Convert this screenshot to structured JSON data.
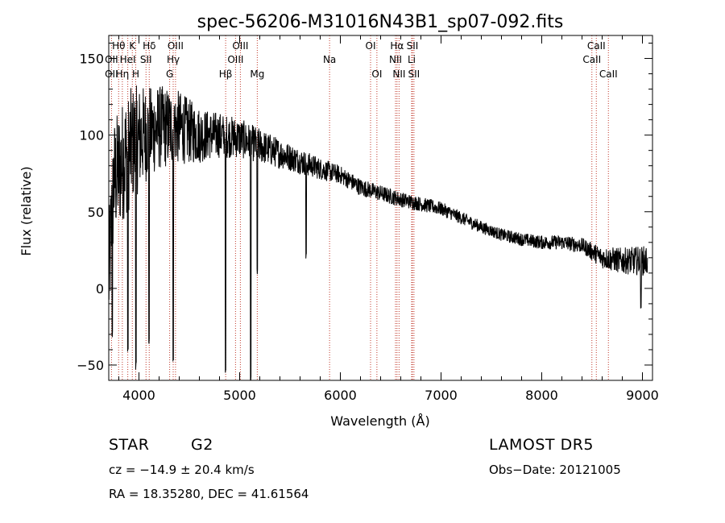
{
  "chart_data": {
    "type": "line",
    "title": "spec-56206-M31016N43B1_sp07-092.fits",
    "xlabel": "Wavelength (Å)",
    "ylabel": "Flux (relative)",
    "xlim": [
      3700,
      9100
    ],
    "ylim": [
      -60,
      165
    ],
    "x_ticks": [
      4000,
      5000,
      6000,
      7000,
      8000,
      9000
    ],
    "y_ticks": [
      -50,
      0,
      50,
      100,
      150
    ],
    "x_tick_labels": [
      "4000",
      "5000",
      "6000",
      "7000",
      "8000",
      "9000"
    ],
    "y_tick_labels": [
      "−50",
      "0",
      "50",
      "100",
      "150"
    ],
    "grid": false,
    "series": [
      {
        "style": "noisy-spectrum",
        "continuum": [
          [
            3700,
            5
          ],
          [
            3750,
            70
          ],
          [
            3850,
            85
          ],
          [
            3950,
            95
          ],
          [
            4050,
            100
          ],
          [
            4200,
            105
          ],
          [
            4400,
            105
          ],
          [
            4600,
            100
          ],
          [
            4800,
            100
          ],
          [
            5000,
            98
          ],
          [
            5200,
            93
          ],
          [
            5400,
            88
          ],
          [
            5600,
            83
          ],
          [
            5800,
            78
          ],
          [
            6000,
            74
          ],
          [
            6200,
            66
          ],
          [
            6400,
            62
          ],
          [
            6600,
            58
          ],
          [
            6800,
            55
          ],
          [
            7000,
            52
          ],
          [
            7200,
            46
          ],
          [
            7400,
            40
          ],
          [
            7600,
            35
          ],
          [
            7800,
            32
          ],
          [
            8000,
            30
          ],
          [
            8200,
            30
          ],
          [
            8400,
            28
          ],
          [
            8600,
            20
          ],
          [
            8800,
            18
          ],
          [
            9000,
            18
          ],
          [
            9050,
            18
          ]
        ],
        "noise_amplitude": [
          [
            3700,
            40
          ],
          [
            3900,
            40
          ],
          [
            4100,
            30
          ],
          [
            4400,
            24
          ],
          [
            4700,
            16
          ],
          [
            5000,
            13
          ],
          [
            5500,
            9
          ],
          [
            6000,
            6
          ],
          [
            6600,
            5
          ],
          [
            7500,
            4
          ],
          [
            8400,
            5
          ],
          [
            8700,
            8
          ],
          [
            9050,
            10
          ]
        ],
        "features": [
          {
            "x": 3735,
            "y": -30
          },
          {
            "x": 3890,
            "y": -40
          },
          {
            "x": 3970,
            "y": -50
          },
          {
            "x": 4101,
            "y": -35
          },
          {
            "x": 4340,
            "y": -45
          },
          {
            "x": 4861,
            "y": -55
          },
          {
            "x": 5110,
            "y": -60
          },
          {
            "x": 5175,
            "y": 10
          },
          {
            "x": 5660,
            "y": 20
          },
          {
            "x": 8985,
            "y": -12
          }
        ]
      }
    ],
    "line_markers": [
      {
        "label": "Hθ",
        "x": 3798,
        "row": 0
      },
      {
        "label": "OII",
        "x": 3727,
        "row": 2
      },
      {
        "label": "OII",
        "x": 3727,
        "row": 1
      },
      {
        "label": "HeI",
        "x": 3889,
        "row": 1
      },
      {
        "label": "Hη",
        "x": 3835,
        "row": 2
      },
      {
        "label": "K",
        "x": 3934,
        "row": 0
      },
      {
        "label": "SII",
        "x": 4070,
        "row": 1
      },
      {
        "label": "H",
        "x": 3968,
        "row": 2
      },
      {
        "label": "Hδ",
        "x": 4102,
        "row": 0
      },
      {
        "label": "OIII",
        "x": 4363,
        "row": 0
      },
      {
        "label": "Hγ",
        "x": 4340,
        "row": 1
      },
      {
        "label": "G",
        "x": 4305,
        "row": 2
      },
      {
        "label": "Hβ",
        "x": 4861,
        "row": 2
      },
      {
        "label": "OIII",
        "x": 5007,
        "row": 0
      },
      {
        "label": "OIII",
        "x": 4959,
        "row": 1
      },
      {
        "label": "Mg",
        "x": 5175,
        "row": 2
      },
      {
        "label": "Na",
        "x": 5893,
        "row": 1
      },
      {
        "label": "OI",
        "x": 6300,
        "row": 0
      },
      {
        "label": "OI",
        "x": 6363,
        "row": 2
      },
      {
        "label": "Hα",
        "x": 6563,
        "row": 0
      },
      {
        "label": "SII",
        "x": 6716,
        "row": 0
      },
      {
        "label": "NII",
        "x": 6548,
        "row": 1
      },
      {
        "label": "Li",
        "x": 6708,
        "row": 1
      },
      {
        "label": "NII",
        "x": 6583,
        "row": 2
      },
      {
        "label": "SII",
        "x": 6731,
        "row": 2
      },
      {
        "label": "CaII",
        "x": 8542,
        "row": 0
      },
      {
        "label": "CaII",
        "x": 8498,
        "row": 1
      },
      {
        "label": "CaII",
        "x": 8662,
        "row": 2
      }
    ]
  },
  "info": {
    "object_class": "STAR",
    "subclass": "G2",
    "survey": "LAMOST DR5",
    "redshift_line": "cz = −14.9 ± 20.4 km/s",
    "obs_date": "Obs−Date: 20121005",
    "coords": "RA =  18.35280, DEC =  41.61564"
  },
  "colors": {
    "spectrum": "#000000",
    "marker_lines": "#c0392b",
    "axes": "#000000"
  }
}
